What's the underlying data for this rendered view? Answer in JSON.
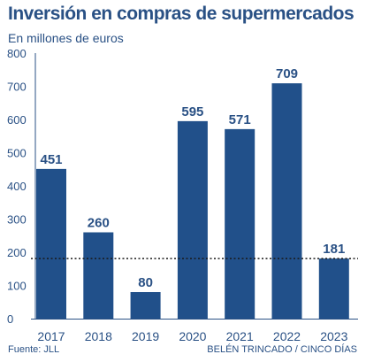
{
  "title": "Inversión en compras de supermercados",
  "subtitle": "En millones de euros",
  "source": "Fuente: JLL",
  "credit": "BELÉN TRINCADO / CINCO DÍAS",
  "colors": {
    "bar": "#21508a",
    "text": "#2a5185",
    "axis": "#2a5185",
    "reference": "#1a1a1a"
  },
  "chart_data": {
    "type": "bar",
    "title": "Inversión en compras de supermercados",
    "subtitle": "En millones de euros",
    "categories": [
      "2017",
      "2018",
      "2019",
      "2020",
      "2021",
      "2022",
      "2023"
    ],
    "values": [
      451,
      260,
      80,
      595,
      571,
      709,
      181
    ],
    "data_labels": [
      "451",
      "260",
      "80",
      "595",
      "571",
      "709",
      "181"
    ],
    "ylim": [
      0,
      800
    ],
    "yticks": [
      0,
      100,
      200,
      300,
      400,
      500,
      600,
      700,
      800
    ],
    "ytick_labels": [
      "0",
      "100",
      "200",
      "300",
      "400",
      "500",
      "600",
      "700",
      "800"
    ],
    "reference_line": {
      "value": 181,
      "style": "dotted"
    },
    "grid": false,
    "legend": "none"
  }
}
